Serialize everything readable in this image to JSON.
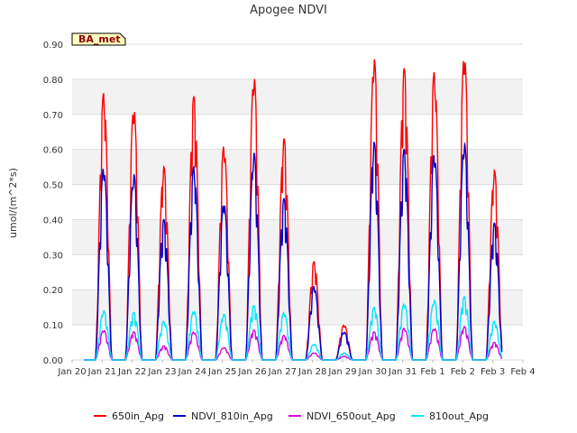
{
  "chart_data": {
    "type": "line",
    "title": "Apogee NDVI",
    "ylabel": "umol/(m^2*s)",
    "xlabel": "",
    "badge": "BA_met",
    "ylim": [
      0,
      0.9
    ],
    "xlim": [
      0,
      15
    ],
    "grid": true,
    "legend_placement": "bottom",
    "x_ticks": [
      "Jan 20",
      "Jan 21",
      "Jan 22",
      "Jan 23",
      "Jan 24",
      "Jan 25",
      "Jan 26",
      "Jan 27",
      "Jan 28",
      "Jan 29",
      "Jan 30",
      "Jan 31",
      "Feb 1",
      "Feb 2",
      "Feb 3",
      "Feb 4"
    ],
    "y_ticks": [
      "0.00",
      "0.10",
      "0.20",
      "0.30",
      "0.40",
      "0.50",
      "0.60",
      "0.70",
      "0.80",
      "0.90"
    ],
    "series": [
      {
        "name": "650in_Apg",
        "color": "#ff0000",
        "days": [
          1,
          2,
          3,
          4,
          5,
          6,
          7,
          8,
          9,
          10,
          11,
          12,
          13,
          14
        ],
        "peaks": [
          0.76,
          0.72,
          0.55,
          0.75,
          0.61,
          0.81,
          0.63,
          0.28,
          0.1,
          0.86,
          0.83,
          0.82,
          0.87,
          0.54
        ]
      },
      {
        "name": "NDVI_810in_Apg",
        "color": "#0000cc",
        "days": [
          1,
          2,
          3,
          4,
          5,
          6,
          7,
          8,
          9,
          10,
          11,
          12,
          13,
          14
        ],
        "peaks": [
          0.55,
          0.53,
          0.4,
          0.55,
          0.45,
          0.59,
          0.46,
          0.21,
          0.08,
          0.62,
          0.6,
          0.59,
          0.62,
          0.39
        ]
      },
      {
        "name": "NDVI_650out_Apg",
        "color": "#dd00dd",
        "days": [
          1,
          2,
          3,
          4,
          5,
          6,
          7,
          8,
          9,
          10,
          11,
          12,
          13,
          14
        ],
        "peaks": [
          0.085,
          0.08,
          0.04,
          0.08,
          0.035,
          0.085,
          0.07,
          0.02,
          0.01,
          0.08,
          0.09,
          0.09,
          0.095,
          0.05
        ]
      },
      {
        "name": "810out_Apg",
        "color": "#00e5ff",
        "days": [
          1,
          2,
          3,
          4,
          5,
          6,
          7,
          8,
          9,
          10,
          11,
          12,
          13,
          14
        ],
        "peaks": [
          0.14,
          0.135,
          0.11,
          0.14,
          0.13,
          0.155,
          0.135,
          0.045,
          0.02,
          0.15,
          0.16,
          0.17,
          0.18,
          0.11
        ]
      }
    ]
  }
}
